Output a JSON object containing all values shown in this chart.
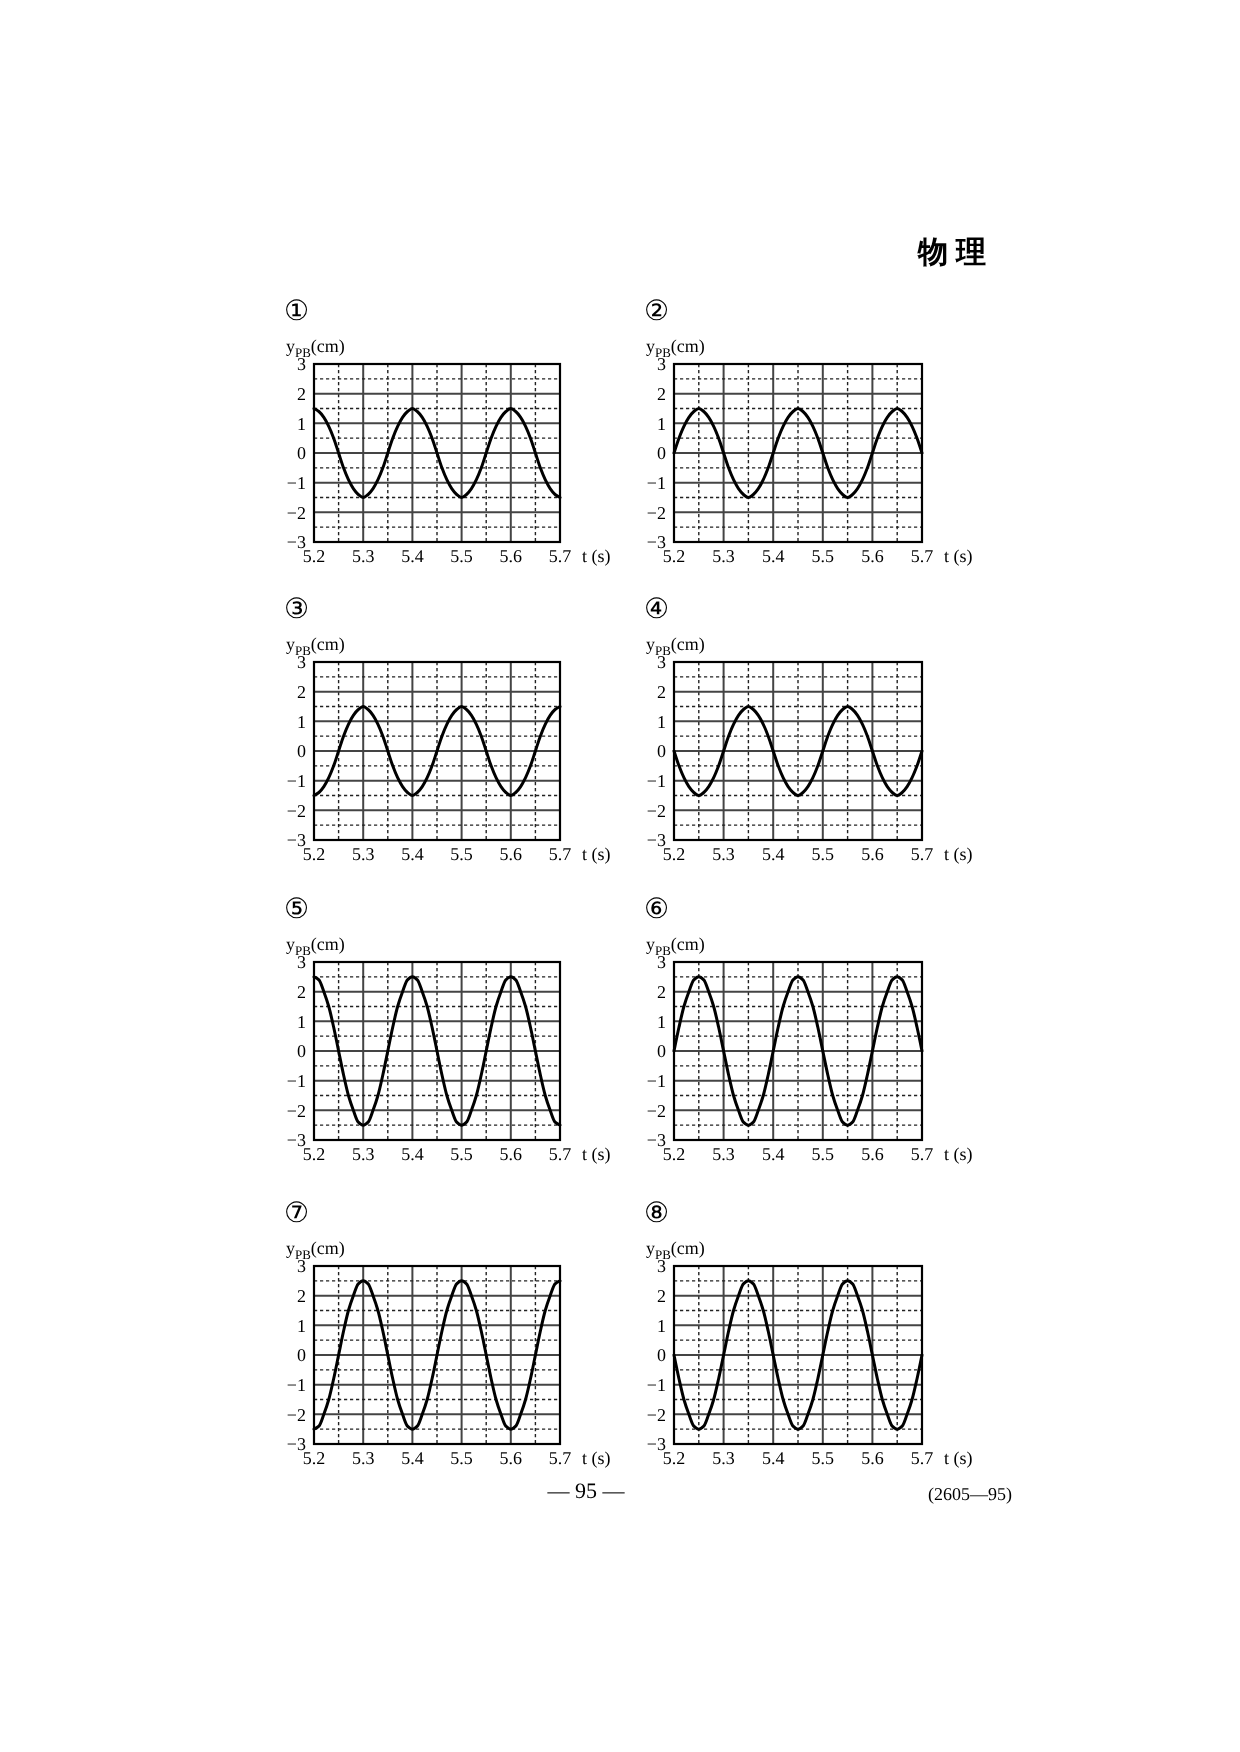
{
  "chart_data": [
    {
      "type": "other",
      "annotations": [
        "物 理"
      ]
    },
    {
      "type": "line",
      "title": "①",
      "xlabel": "t (s)",
      "ylabel": "y$_{PB}$(cm)",
      "grid": true,
      "xlim": [
        5.2,
        5.7
      ],
      "ylim": [
        -3,
        3
      ],
      "xticks": [
        5.2,
        {
          "value": 5.25,
          "label": null
        },
        5.3,
        {
          "value": 5.35,
          "label": null
        },
        5.4,
        {
          "value": 5.45,
          "label": null
        },
        5.5,
        {
          "value": 5.55,
          "label": null
        },
        5.6,
        {
          "value": 5.65,
          "label": null
        },
        5.7
      ],
      "yticks": [
        {
          "value": -3,
          "label": "−3"
        },
        {
          "value": -2.5,
          "label": null
        },
        {
          "value": -2,
          "label": "−2"
        },
        {
          "value": -1.5,
          "label": null
        },
        {
          "value": -1,
          "label": "−1"
        },
        {
          "value": -0.5,
          "label": null
        },
        0,
        {
          "value": 0.5,
          "label": null
        },
        1,
        {
          "value": 1.5,
          "label": null
        },
        2,
        {
          "value": 2.5,
          "label": null
        },
        3
      ],
      "x": [
        5.2,
        5.21,
        5.22,
        5.23,
        5.24,
        5.25,
        5.26,
        5.27,
        5.28,
        5.29,
        5.3,
        5.31,
        5.32,
        5.33,
        5.34,
        5.35,
        5.36,
        5.37,
        5.38,
        5.39,
        5.4,
        5.41,
        5.42,
        5.43,
        5.44,
        5.45,
        5.46,
        5.47,
        5.48,
        5.49,
        5.5,
        5.51,
        5.52,
        5.53,
        5.54,
        5.55,
        5.56,
        5.57,
        5.58,
        5.59,
        5.6,
        5.61,
        5.62,
        5.63,
        5.64,
        5.65,
        5.66,
        5.67,
        5.68,
        5.69,
        5.7
      ],
      "series": [
        {
          "color": "#000000",
          "values": [
            1.5,
            1.4,
            1.2,
            0.9,
            0.5,
            0,
            -0.5,
            -0.9,
            -1.2,
            -1.4,
            -1.5,
            -1.4,
            -1.2,
            -0.9,
            -0.5,
            0,
            0.5,
            0.9,
            1.2,
            1.4,
            1.5,
            1.4,
            1.2,
            0.9,
            0.5,
            0,
            -0.5,
            -0.9,
            -1.2,
            -1.4,
            -1.5,
            -1.4,
            -1.2,
            -0.9,
            -0.5,
            0,
            0.5,
            0.9,
            1.2,
            1.4,
            1.5,
            1.4,
            1.2,
            0.9,
            0.5,
            0,
            -0.5,
            -0.9,
            -1.2,
            -1.4,
            -1.5
          ]
        }
      ]
    },
    {
      "type": "line",
      "title": "②",
      "xlabel": "t (s)",
      "ylabel": "y$_{PB}$(cm)",
      "grid": true,
      "xlim": [
        5.2,
        5.7
      ],
      "ylim": [
        -3,
        3
      ],
      "xticks": [
        5.2,
        {
          "value": 5.25,
          "label": null
        },
        5.3,
        {
          "value": 5.35,
          "label": null
        },
        5.4,
        {
          "value": 5.45,
          "label": null
        },
        5.5,
        {
          "value": 5.55,
          "label": null
        },
        5.6,
        {
          "value": 5.65,
          "label": null
        },
        5.7
      ],
      "yticks": [
        {
          "value": -3,
          "label": "−3"
        },
        {
          "value": -2.5,
          "label": null
        },
        {
          "value": -2,
          "label": "−2"
        },
        {
          "value": -1.5,
          "label": null
        },
        {
          "value": -1,
          "label": "−1"
        },
        {
          "value": -0.5,
          "label": null
        },
        0,
        {
          "value": 0.5,
          "label": null
        },
        1,
        {
          "value": 1.5,
          "label": null
        },
        2,
        {
          "value": 2.5,
          "label": null
        },
        3
      ],
      "x": [
        5.2,
        5.21,
        5.22,
        5.23,
        5.24,
        5.25,
        5.26,
        5.27,
        5.28,
        5.29,
        5.3,
        5.31,
        5.32,
        5.33,
        5.34,
        5.35,
        5.36,
        5.37,
        5.38,
        5.39,
        5.4,
        5.41,
        5.42,
        5.43,
        5.44,
        5.45,
        5.46,
        5.47,
        5.48,
        5.49,
        5.5,
        5.51,
        5.52,
        5.53,
        5.54,
        5.55,
        5.56,
        5.57,
        5.58,
        5.59,
        5.6,
        5.61,
        5.62,
        5.63,
        5.64,
        5.65,
        5.66,
        5.67,
        5.68,
        5.69,
        5.7
      ],
      "series": [
        {
          "color": "#000000",
          "values": [
            0,
            0.5,
            0.9,
            1.2,
            1.4,
            1.5,
            1.4,
            1.2,
            0.9,
            0.5,
            0,
            -0.5,
            -0.9,
            -1.2,
            -1.4,
            -1.5,
            -1.4,
            -1.2,
            -0.9,
            -0.5,
            0,
            0.5,
            0.9,
            1.2,
            1.4,
            1.5,
            1.4,
            1.2,
            0.9,
            0.5,
            0,
            -0.5,
            -0.9,
            -1.2,
            -1.4,
            -1.5,
            -1.4,
            -1.2,
            -0.9,
            -0.5,
            0,
            0.5,
            0.9,
            1.2,
            1.4,
            1.5,
            1.4,
            1.2,
            0.9,
            0.5,
            0
          ]
        }
      ]
    },
    {
      "type": "line",
      "title": "③",
      "xlabel": "t (s)",
      "ylabel": "y$_{PB}$(cm)",
      "grid": true,
      "xlim": [
        5.2,
        5.7
      ],
      "ylim": [
        -3,
        3
      ],
      "xticks": [
        5.2,
        {
          "value": 5.25,
          "label": null
        },
        5.3,
        {
          "value": 5.35,
          "label": null
        },
        5.4,
        {
          "value": 5.45,
          "label": null
        },
        5.5,
        {
          "value": 5.55,
          "label": null
        },
        5.6,
        {
          "value": 5.65,
          "label": null
        },
        5.7
      ],
      "yticks": [
        {
          "value": -3,
          "label": "−3"
        },
        {
          "value": -2.5,
          "label": null
        },
        {
          "value": -2,
          "label": "−2"
        },
        {
          "value": -1.5,
          "label": null
        },
        {
          "value": -1,
          "label": "−1"
        },
        {
          "value": -0.5,
          "label": null
        },
        0,
        {
          "value": 0.5,
          "label": null
        },
        1,
        {
          "value": 1.5,
          "label": null
        },
        2,
        {
          "value": 2.5,
          "label": null
        },
        3
      ],
      "x": [
        5.2,
        5.21,
        5.22,
        5.23,
        5.24,
        5.25,
        5.26,
        5.27,
        5.28,
        5.29,
        5.3,
        5.31,
        5.32,
        5.33,
        5.34,
        5.35,
        5.36,
        5.37,
        5.38,
        5.39,
        5.4,
        5.41,
        5.42,
        5.43,
        5.44,
        5.45,
        5.46,
        5.47,
        5.48,
        5.49,
        5.5,
        5.51,
        5.52,
        5.53,
        5.54,
        5.55,
        5.56,
        5.57,
        5.58,
        5.59,
        5.6,
        5.61,
        5.62,
        5.63,
        5.64,
        5.65,
        5.66,
        5.67,
        5.68,
        5.69,
        5.7
      ],
      "series": [
        {
          "color": "#000000",
          "values": [
            -1.5,
            -1.4,
            -1.2,
            -0.9,
            -0.5,
            0,
            0.5,
            0.9,
            1.2,
            1.4,
            1.5,
            1.4,
            1.2,
            0.9,
            0.5,
            0,
            -0.5,
            -0.9,
            -1.2,
            -1.4,
            -1.5,
            -1.4,
            -1.2,
            -0.9,
            -0.5,
            0,
            0.5,
            0.9,
            1.2,
            1.4,
            1.5,
            1.4,
            1.2,
            0.9,
            0.5,
            0,
            -0.5,
            -0.9,
            -1.2,
            -1.4,
            -1.5,
            -1.4,
            -1.2,
            -0.9,
            -0.5,
            0,
            0.5,
            0.9,
            1.2,
            1.4,
            1.5
          ]
        }
      ]
    },
    {
      "type": "line",
      "title": "④",
      "xlabel": "t (s)",
      "ylabel": "y$_{PB}$(cm)",
      "grid": true,
      "xlim": [
        5.2,
        5.7
      ],
      "ylim": [
        -3,
        3
      ],
      "xticks": [
        5.2,
        {
          "value": 5.25,
          "label": null
        },
        5.3,
        {
          "value": 5.35,
          "label": null
        },
        5.4,
        {
          "value": 5.45,
          "label": null
        },
        5.5,
        {
          "value": 5.55,
          "label": null
        },
        5.6,
        {
          "value": 5.65,
          "label": null
        },
        5.7
      ],
      "yticks": [
        {
          "value": -3,
          "label": "−3"
        },
        {
          "value": -2.5,
          "label": null
        },
        {
          "value": -2,
          "label": "−2"
        },
        {
          "value": -1.5,
          "label": null
        },
        {
          "value": -1,
          "label": "−1"
        },
        {
          "value": -0.5,
          "label": null
        },
        0,
        {
          "value": 0.5,
          "label": null
        },
        1,
        {
          "value": 1.5,
          "label": null
        },
        2,
        {
          "value": 2.5,
          "label": null
        },
        3
      ],
      "x": [
        5.2,
        5.21,
        5.22,
        5.23,
        5.24,
        5.25,
        5.26,
        5.27,
        5.28,
        5.29,
        5.3,
        5.31,
        5.32,
        5.33,
        5.34,
        5.35,
        5.36,
        5.37,
        5.38,
        5.39,
        5.4,
        5.41,
        5.42,
        5.43,
        5.44,
        5.45,
        5.46,
        5.47,
        5.48,
        5.49,
        5.5,
        5.51,
        5.52,
        5.53,
        5.54,
        5.55,
        5.56,
        5.57,
        5.58,
        5.59,
        5.6,
        5.61,
        5.62,
        5.63,
        5.64,
        5.65,
        5.66,
        5.67,
        5.68,
        5.69,
        5.7
      ],
      "series": [
        {
          "color": "#000000",
          "values": [
            0,
            -0.5,
            -0.9,
            -1.2,
            -1.4,
            -1.5,
            -1.4,
            -1.2,
            -0.9,
            -0.5,
            0,
            0.5,
            0.9,
            1.2,
            1.4,
            1.5,
            1.4,
            1.2,
            0.9,
            0.5,
            0,
            -0.5,
            -0.9,
            -1.2,
            -1.4,
            -1.5,
            -1.4,
            -1.2,
            -0.9,
            -0.5,
            0,
            0.5,
            0.9,
            1.2,
            1.4,
            1.5,
            1.4,
            1.2,
            0.9,
            0.5,
            0,
            -0.5,
            -0.9,
            -1.2,
            -1.4,
            -1.5,
            -1.4,
            -1.2,
            -0.9,
            -0.5,
            0
          ]
        }
      ]
    },
    {
      "type": "line",
      "title": "⑤",
      "xlabel": "t (s)",
      "ylabel": "y$_{PB}$(cm)",
      "grid": true,
      "xlim": [
        5.2,
        5.7
      ],
      "ylim": [
        -3,
        3
      ],
      "xticks": [
        5.2,
        {
          "value": 5.25,
          "label": null
        },
        5.3,
        {
          "value": 5.35,
          "label": null
        },
        5.4,
        {
          "value": 5.45,
          "label": null
        },
        5.5,
        {
          "value": 5.55,
          "label": null
        },
        5.6,
        {
          "value": 5.65,
          "label": null
        },
        5.7
      ],
      "yticks": [
        {
          "value": -3,
          "label": "−3"
        },
        {
          "value": -2.5,
          "label": null
        },
        {
          "value": -2,
          "label": "−2"
        },
        {
          "value": -1.5,
          "label": null
        },
        {
          "value": -1,
          "label": "−1"
        },
        {
          "value": -0.5,
          "label": null
        },
        0,
        {
          "value": 0.5,
          "label": null
        },
        1,
        {
          "value": 1.5,
          "label": null
        },
        2,
        {
          "value": 2.5,
          "label": null
        },
        3
      ],
      "x": [
        5.2,
        5.21,
        5.22,
        5.23,
        5.24,
        5.25,
        5.26,
        5.27,
        5.28,
        5.29,
        5.3,
        5.31,
        5.32,
        5.33,
        5.34,
        5.35,
        5.36,
        5.37,
        5.38,
        5.39,
        5.4,
        5.41,
        5.42,
        5.43,
        5.44,
        5.45,
        5.46,
        5.47,
        5.48,
        5.49,
        5.5,
        5.51,
        5.52,
        5.53,
        5.54,
        5.55,
        5.56,
        5.57,
        5.58,
        5.59,
        5.6,
        5.61,
        5.62,
        5.63,
        5.64,
        5.65,
        5.66,
        5.67,
        5.68,
        5.69,
        5.7
      ],
      "series": [
        {
          "color": "#000000",
          "values": [
            2.5,
            2.4,
            2,
            1.5,
            0.8,
            0,
            -0.8,
            -1.5,
            -2,
            -2.4,
            -2.5,
            -2.4,
            -2,
            -1.5,
            -0.8,
            0,
            0.8,
            1.5,
            2,
            2.4,
            2.5,
            2.4,
            2,
            1.5,
            0.8,
            0,
            -0.8,
            -1.5,
            -2,
            -2.4,
            -2.5,
            -2.4,
            -2,
            -1.5,
            -0.8,
            0,
            0.8,
            1.5,
            2,
            2.4,
            2.5,
            2.4,
            2,
            1.5,
            0.8,
            0,
            -0.8,
            -1.5,
            -2,
            -2.4,
            -2.5
          ]
        }
      ]
    },
    {
      "type": "line",
      "title": "⑥",
      "xlabel": "t (s)",
      "ylabel": "y$_{PB}$(cm)",
      "grid": true,
      "xlim": [
        5.2,
        5.7
      ],
      "ylim": [
        -3,
        3
      ],
      "xticks": [
        5.2,
        {
          "value": 5.25,
          "label": null
        },
        5.3,
        {
          "value": 5.35,
          "label": null
        },
        5.4,
        {
          "value": 5.45,
          "label": null
        },
        5.5,
        {
          "value": 5.55,
          "label": null
        },
        5.6,
        {
          "value": 5.65,
          "label": null
        },
        5.7
      ],
      "yticks": [
        {
          "value": -3,
          "label": "−3"
        },
        {
          "value": -2.5,
          "label": null
        },
        {
          "value": -2,
          "label": "−2"
        },
        {
          "value": -1.5,
          "label": null
        },
        {
          "value": -1,
          "label": "−1"
        },
        {
          "value": -0.5,
          "label": null
        },
        0,
        {
          "value": 0.5,
          "label": null
        },
        1,
        {
          "value": 1.5,
          "label": null
        },
        2,
        {
          "value": 2.5,
          "label": null
        },
        3
      ],
      "x": [
        5.2,
        5.21,
        5.22,
        5.23,
        5.24,
        5.25,
        5.26,
        5.27,
        5.28,
        5.29,
        5.3,
        5.31,
        5.32,
        5.33,
        5.34,
        5.35,
        5.36,
        5.37,
        5.38,
        5.39,
        5.4,
        5.41,
        5.42,
        5.43,
        5.44,
        5.45,
        5.46,
        5.47,
        5.48,
        5.49,
        5.5,
        5.51,
        5.52,
        5.53,
        5.54,
        5.55,
        5.56,
        5.57,
        5.58,
        5.59,
        5.6,
        5.61,
        5.62,
        5.63,
        5.64,
        5.65,
        5.66,
        5.67,
        5.68,
        5.69,
        5.7
      ],
      "series": [
        {
          "color": "#000000",
          "values": [
            0,
            0.8,
            1.5,
            2,
            2.4,
            2.5,
            2.4,
            2,
            1.5,
            0.8,
            0,
            -0.8,
            -1.5,
            -2,
            -2.4,
            -2.5,
            -2.4,
            -2,
            -1.5,
            -0.8,
            0,
            0.8,
            1.5,
            2,
            2.4,
            2.5,
            2.4,
            2,
            1.5,
            0.8,
            0,
            -0.8,
            -1.5,
            -2,
            -2.4,
            -2.5,
            -2.4,
            -2,
            -1.5,
            -0.8,
            0,
            0.8,
            1.5,
            2,
            2.4,
            2.5,
            2.4,
            2,
            1.5,
            0.8,
            0
          ]
        }
      ]
    },
    {
      "type": "line",
      "title": "⑦",
      "xlabel": "t (s)",
      "ylabel": "y$_{PB}$(cm)",
      "grid": true,
      "xlim": [
        5.2,
        5.7
      ],
      "ylim": [
        -3,
        3
      ],
      "xticks": [
        5.2,
        {
          "value": 5.25,
          "label": null
        },
        5.3,
        {
          "value": 5.35,
          "label": null
        },
        5.4,
        {
          "value": 5.45,
          "label": null
        },
        5.5,
        {
          "value": 5.55,
          "label": null
        },
        5.6,
        {
          "value": 5.65,
          "label": null
        },
        5.7
      ],
      "yticks": [
        {
          "value": -3,
          "label": "−3"
        },
        {
          "value": -2.5,
          "label": null
        },
        {
          "value": -2,
          "label": "−2"
        },
        {
          "value": -1.5,
          "label": null
        },
        {
          "value": -1,
          "label": "−1"
        },
        {
          "value": -0.5,
          "label": null
        },
        0,
        {
          "value": 0.5,
          "label": null
        },
        1,
        {
          "value": 1.5,
          "label": null
        },
        2,
        {
          "value": 2.5,
          "label": null
        },
        3
      ],
      "x": [
        5.2,
        5.21,
        5.22,
        5.23,
        5.24,
        5.25,
        5.26,
        5.27,
        5.28,
        5.29,
        5.3,
        5.31,
        5.32,
        5.33,
        5.34,
        5.35,
        5.36,
        5.37,
        5.38,
        5.39,
        5.4,
        5.41,
        5.42,
        5.43,
        5.44,
        5.45,
        5.46,
        5.47,
        5.48,
        5.49,
        5.5,
        5.51,
        5.52,
        5.53,
        5.54,
        5.55,
        5.56,
        5.57,
        5.58,
        5.59,
        5.6,
        5.61,
        5.62,
        5.63,
        5.64,
        5.65,
        5.66,
        5.67,
        5.68,
        5.69,
        5.7
      ],
      "series": [
        {
          "color": "#000000",
          "values": [
            -2.5,
            -2.4,
            -2,
            -1.5,
            -0.8,
            0,
            0.8,
            1.5,
            2,
            2.4,
            2.5,
            2.4,
            2,
            1.5,
            0.8,
            0,
            -0.8,
            -1.5,
            -2,
            -2.4,
            -2.5,
            -2.4,
            -2,
            -1.5,
            -0.8,
            0,
            0.8,
            1.5,
            2,
            2.4,
            2.5,
            2.4,
            2,
            1.5,
            0.8,
            0,
            -0.8,
            -1.5,
            -2,
            -2.4,
            -2.5,
            -2.4,
            -2,
            -1.5,
            -0.8,
            0,
            0.8,
            1.5,
            2,
            2.4,
            2.5
          ]
        }
      ]
    },
    {
      "type": "line",
      "title": "⑧",
      "xlabel": "t (s)",
      "ylabel": "y$_{PB}$(cm)",
      "grid": true,
      "xlim": [
        5.2,
        5.7
      ],
      "ylim": [
        -3,
        3
      ],
      "xticks": [
        5.2,
        {
          "value": 5.25,
          "label": null
        },
        5.3,
        {
          "value": 5.35,
          "label": null
        },
        5.4,
        {
          "value": 5.45,
          "label": null
        },
        5.5,
        {
          "value": 5.55,
          "label": null
        },
        5.6,
        {
          "value": 5.65,
          "label": null
        },
        5.7
      ],
      "yticks": [
        {
          "value": -3,
          "label": "−3"
        },
        {
          "value": -2.5,
          "label": null
        },
        {
          "value": -2,
          "label": "−2"
        },
        {
          "value": -1.5,
          "label": null
        },
        {
          "value": -1,
          "label": "−1"
        },
        {
          "value": -0.5,
          "label": null
        },
        0,
        {
          "value": 0.5,
          "label": null
        },
        1,
        {
          "value": 1.5,
          "label": null
        },
        2,
        {
          "value": 2.5,
          "label": null
        },
        3
      ],
      "x": [
        5.2,
        5.21,
        5.22,
        5.23,
        5.24,
        5.25,
        5.26,
        5.27,
        5.28,
        5.29,
        5.3,
        5.31,
        5.32,
        5.33,
        5.34,
        5.35,
        5.36,
        5.37,
        5.38,
        5.39,
        5.4,
        5.41,
        5.42,
        5.43,
        5.44,
        5.45,
        5.46,
        5.47,
        5.48,
        5.49,
        5.5,
        5.51,
        5.52,
        5.53,
        5.54,
        5.55,
        5.56,
        5.57,
        5.58,
        5.59,
        5.6,
        5.61,
        5.62,
        5.63,
        5.64,
        5.65,
        5.66,
        5.67,
        5.68,
        5.69,
        5.7
      ],
      "series": [
        {
          "color": "#000000",
          "values": [
            0,
            -0.8,
            -1.5,
            -2,
            -2.4,
            -2.5,
            -2.4,
            -2,
            -1.5,
            -0.8,
            0,
            0.8,
            1.5,
            2,
            2.4,
            2.5,
            2.4,
            2,
            1.5,
            0.8,
            0,
            -0.8,
            -1.5,
            -2,
            -2.4,
            -2.5,
            -2.4,
            -2,
            -1.5,
            -0.8,
            0,
            0.8,
            1.5,
            2,
            2.4,
            2.5,
            2.4,
            2,
            1.5,
            0.8,
            0,
            -0.8,
            -1.5,
            -2,
            -2.4,
            -2.5,
            -2.4,
            -2,
            -1.5,
            -0.8,
            0
          ]
        }
      ]
    },
    {
      "type": "other",
      "annotations": [
        "— 95 —",
        "(2605—95)"
      ]
    }
  ]
}
